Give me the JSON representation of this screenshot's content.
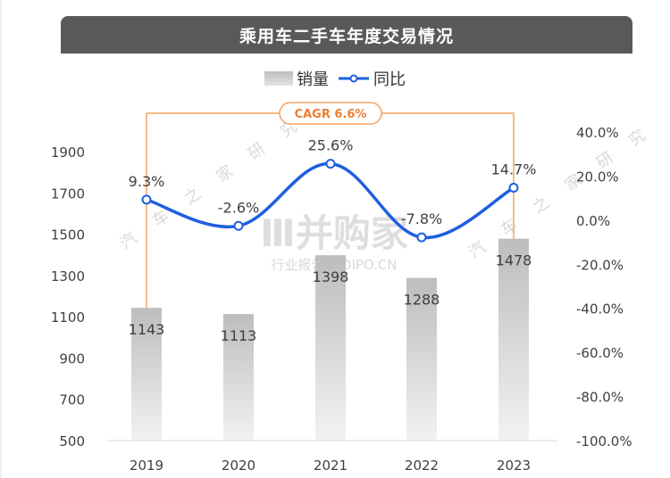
{
  "title": "乘用车二手车年度交易情况",
  "legend": {
    "bar_label": "销量",
    "line_label": "同比"
  },
  "cagr_label": "CAGR 6.6%",
  "watermark": {
    "logo": "Ⅲ并购家",
    "site": "行业报告 IPOIPO.CN",
    "side": "汽 车 之 家 研 究"
  },
  "colors": {
    "line": "#1f5fe0",
    "bracket": "#f4a460",
    "cagr_text": "#ed7d31",
    "bar_top": "#bdbdbd",
    "bar_bottom": "#f2f2f2",
    "title_bg": "#595959"
  },
  "chart_data": {
    "type": "bar",
    "categories": [
      "2019",
      "2020",
      "2021",
      "2022",
      "2023"
    ],
    "series": [
      {
        "name": "销量",
        "type": "bar",
        "axis": "left",
        "values": [
          1143,
          1113,
          1398,
          1288,
          1478
        ]
      },
      {
        "name": "同比",
        "type": "line",
        "axis": "right",
        "values": [
          9.3,
          -2.6,
          25.6,
          -7.8,
          14.7
        ],
        "labels": [
          "9.3%",
          "-2.6%",
          "25.6%",
          "-7.8%",
          "14.7%"
        ]
      }
    ],
    "ylim_left": [
      500,
      1900
    ],
    "yticks_left": [
      "1900",
      "1700",
      "1500",
      "1300",
      "1100",
      "900",
      "700",
      "500"
    ],
    "ylim_right": [
      -100,
      40
    ],
    "yticks_right": [
      "40.0%",
      "20.0%",
      "0.0%",
      "-20.0%",
      "-40.0%",
      "-60.0%",
      "-80.0%",
      "-100.0%"
    ],
    "annotation": "CAGR 6.6%",
    "grid": false,
    "legend_position": "top"
  }
}
